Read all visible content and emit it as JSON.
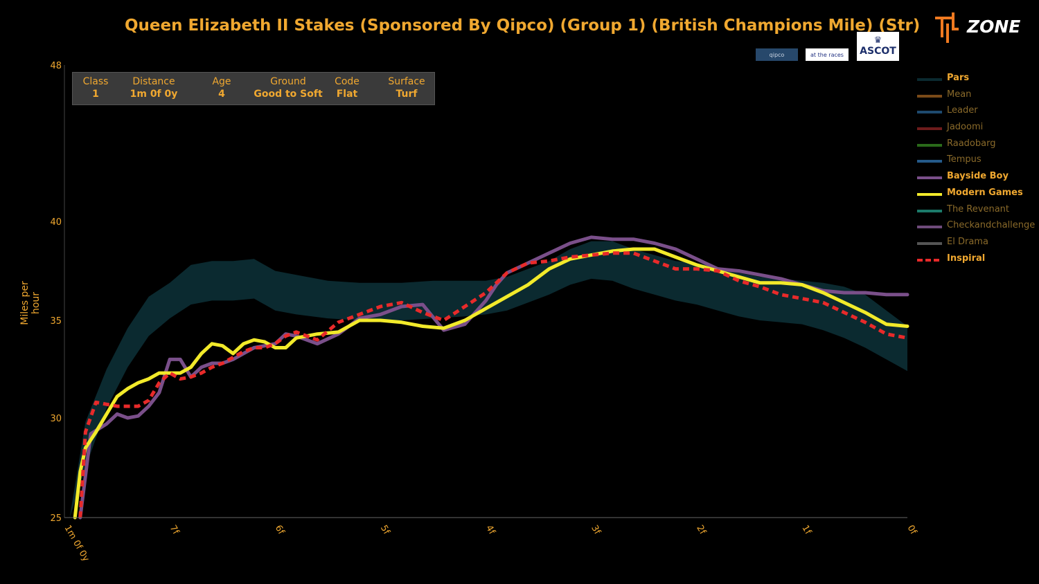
{
  "header": {
    "title": "Queen Elizabeth II Stakes (Sponsored By Qipco) (Group 1) (British Champions Mile) (Str)",
    "brand": "ZONE",
    "sponsors": [
      "qipco",
      "at the races",
      "ASCOT"
    ]
  },
  "info": [
    {
      "label": "Class",
      "value": "1"
    },
    {
      "label": "Distance",
      "value": "1m 0f 0y"
    },
    {
      "label": "Age",
      "value": "4"
    },
    {
      "label": "Ground",
      "value": "Good to Soft"
    },
    {
      "label": "Code",
      "value": "Flat"
    },
    {
      "label": "Surface",
      "value": "Turf"
    }
  ],
  "colors": {
    "accent": "#f0a830",
    "pars_band": "#0b2a30",
    "bayside": "#7a4f8a",
    "modern": "#f2ea2a",
    "inspiral": "#e82a2a"
  },
  "chart_data": {
    "type": "line",
    "ylabel": "Miles per hour",
    "xlabel": "",
    "ylim": [
      25,
      48
    ],
    "y_ticks": [
      25,
      30,
      35,
      40,
      48
    ],
    "x_ticks": [
      "1m 0f 0y",
      "7f",
      "6f",
      "5f",
      "4f",
      "3f",
      "2f",
      "1f",
      "0f"
    ],
    "x_unit": "furlongs remaining",
    "xlim": [
      8,
      0
    ],
    "legend": [
      {
        "name": "Pars",
        "color": "#0b2a30",
        "active": true
      },
      {
        "name": "Mean",
        "color": "#7a4a18",
        "active": false
      },
      {
        "name": "Leader",
        "color": "#1e4a6e",
        "active": false
      },
      {
        "name": "Jadoomi",
        "color": "#6e1c1c",
        "active": false
      },
      {
        "name": "Raadobarg",
        "color": "#2a6a1a",
        "active": false
      },
      {
        "name": "Tempus",
        "color": "#245a8a",
        "active": false
      },
      {
        "name": "Bayside Boy",
        "color": "#7a4f8a",
        "active": true
      },
      {
        "name": "Modern Games",
        "color": "#f2ea2a",
        "active": true
      },
      {
        "name": "The Revenant",
        "color": "#1c7a6a",
        "active": false
      },
      {
        "name": "Checkandchallenge",
        "color": "#6e4a7a",
        "active": false
      },
      {
        "name": "El Drama",
        "color": "#555555",
        "active": false
      },
      {
        "name": "Inspiral",
        "color": "#e82a2a",
        "active": true,
        "dashed": true
      }
    ],
    "pars_band": {
      "x": [
        7.95,
        7.8,
        7.6,
        7.4,
        7.2,
        7.0,
        6.8,
        6.6,
        6.4,
        6.2,
        6.0,
        5.8,
        5.5,
        5.2,
        5.0,
        4.8,
        4.5,
        4.2,
        4.0,
        3.8,
        3.6,
        3.4,
        3.2,
        3.0,
        2.8,
        2.6,
        2.4,
        2.2,
        2.0,
        1.8,
        1.6,
        1.4,
        1.2,
        1.0,
        0.8,
        0.6,
        0.4,
        0.2,
        0.0
      ],
      "upper": [
        25.0,
        29.8,
        32.5,
        34.6,
        36.2,
        36.9,
        37.8,
        38.0,
        38.0,
        38.1,
        37.5,
        37.3,
        37.0,
        36.9,
        36.9,
        36.9,
        37.0,
        37.0,
        37.0,
        37.2,
        37.6,
        38.0,
        38.6,
        39.0,
        39.0,
        38.6,
        38.3,
        38.0,
        37.9,
        37.7,
        37.4,
        37.2,
        37.1,
        37.0,
        36.9,
        36.7,
        36.3,
        35.5,
        34.7
      ],
      "lower": [
        25.0,
        27.5,
        30.5,
        32.6,
        34.2,
        35.1,
        35.8,
        36.0,
        36.0,
        36.1,
        35.5,
        35.3,
        35.1,
        35.0,
        35.0,
        35.0,
        35.1,
        35.2,
        35.3,
        35.5,
        35.9,
        36.3,
        36.8,
        37.1,
        37.0,
        36.6,
        36.3,
        36.0,
        35.8,
        35.5,
        35.2,
        35.0,
        34.9,
        34.8,
        34.5,
        34.1,
        33.6,
        33.0,
        32.4
      ]
    },
    "series": [
      {
        "name": "Bayside Boy",
        "color": "#7a4f8a",
        "width": 5,
        "dashed": false,
        "x": [
          7.85,
          7.75,
          7.6,
          7.5,
          7.4,
          7.3,
          7.2,
          7.1,
          7.0,
          6.9,
          6.8,
          6.7,
          6.6,
          6.5,
          6.4,
          6.3,
          6.2,
          6.1,
          6.0,
          5.9,
          5.8,
          5.6,
          5.4,
          5.2,
          5.0,
          4.8,
          4.6,
          4.4,
          4.2,
          4.0,
          3.9,
          3.8,
          3.6,
          3.4,
          3.2,
          3.0,
          2.8,
          2.6,
          2.4,
          2.2,
          2.0,
          1.8,
          1.6,
          1.4,
          1.2,
          1.0,
          0.8,
          0.6,
          0.4,
          0.2,
          0.05,
          0.0
        ],
        "y": [
          25.0,
          29.2,
          29.7,
          30.2,
          30.0,
          30.1,
          30.6,
          31.3,
          33.0,
          33.0,
          32.1,
          32.6,
          32.8,
          32.8,
          33.0,
          33.3,
          33.6,
          33.7,
          33.8,
          34.3,
          34.2,
          33.8,
          34.3,
          35.1,
          35.3,
          35.7,
          35.8,
          34.5,
          34.8,
          36.0,
          36.8,
          37.4,
          37.9,
          38.4,
          38.9,
          39.2,
          39.1,
          39.1,
          38.9,
          38.6,
          38.1,
          37.6,
          37.5,
          37.3,
          37.1,
          36.8,
          36.5,
          36.4,
          36.4,
          36.3,
          36.3,
          36.3
        ]
      },
      {
        "name": "Modern Games",
        "color": "#f2ea2a",
        "width": 5,
        "dashed": false,
        "x": [
          7.9,
          7.85,
          7.8,
          7.7,
          7.6,
          7.5,
          7.4,
          7.3,
          7.2,
          7.1,
          7.0,
          6.9,
          6.8,
          6.7,
          6.6,
          6.5,
          6.4,
          6.3,
          6.2,
          6.1,
          6.0,
          5.9,
          5.8,
          5.6,
          5.4,
          5.2,
          5.0,
          4.8,
          4.6,
          4.4,
          4.2,
          4.0,
          3.8,
          3.6,
          3.4,
          3.2,
          3.0,
          2.8,
          2.6,
          2.4,
          2.2,
          2.0,
          1.8,
          1.6,
          1.4,
          1.2,
          1.0,
          0.8,
          0.6,
          0.4,
          0.2,
          0.0
        ],
        "y": [
          25.0,
          27.3,
          28.5,
          29.3,
          30.2,
          31.1,
          31.5,
          31.8,
          32.0,
          32.3,
          32.3,
          32.3,
          32.6,
          33.3,
          33.8,
          33.7,
          33.3,
          33.8,
          34.0,
          33.9,
          33.6,
          33.6,
          34.1,
          34.3,
          34.4,
          35.0,
          35.0,
          34.9,
          34.7,
          34.6,
          35.0,
          35.6,
          36.2,
          36.8,
          37.6,
          38.1,
          38.3,
          38.5,
          38.6,
          38.6,
          38.2,
          37.8,
          37.5,
          37.2,
          36.9,
          36.9,
          36.8,
          36.4,
          35.9,
          35.4,
          34.8,
          34.7
        ]
      },
      {
        "name": "Inspiral",
        "color": "#e82a2a",
        "width": 5,
        "dashed": true,
        "x": [
          7.85,
          7.8,
          7.7,
          7.6,
          7.5,
          7.4,
          7.3,
          7.2,
          7.1,
          7.0,
          6.9,
          6.8,
          6.7,
          6.6,
          6.5,
          6.4,
          6.3,
          6.2,
          6.1,
          6.0,
          5.9,
          5.8,
          5.6,
          5.4,
          5.2,
          5.0,
          4.8,
          4.6,
          4.4,
          4.2,
          4.0,
          3.8,
          3.6,
          3.4,
          3.2,
          3.0,
          2.8,
          2.6,
          2.4,
          2.2,
          2.0,
          1.8,
          1.6,
          1.4,
          1.2,
          1.0,
          0.8,
          0.6,
          0.4,
          0.2,
          0.0
        ],
        "y": [
          25.0,
          29.3,
          30.8,
          30.7,
          30.6,
          30.6,
          30.6,
          30.9,
          31.8,
          32.3,
          32.0,
          32.1,
          32.3,
          32.6,
          32.8,
          33.1,
          33.4,
          33.6,
          33.6,
          33.8,
          34.2,
          34.4,
          34.0,
          34.9,
          35.3,
          35.7,
          35.9,
          35.4,
          35.0,
          35.7,
          36.4,
          37.4,
          37.9,
          38.0,
          38.2,
          38.3,
          38.4,
          38.4,
          38.0,
          37.6,
          37.6,
          37.5,
          37.0,
          36.7,
          36.3,
          36.1,
          35.9,
          35.4,
          34.9,
          34.3,
          34.1
        ]
      }
    ]
  }
}
